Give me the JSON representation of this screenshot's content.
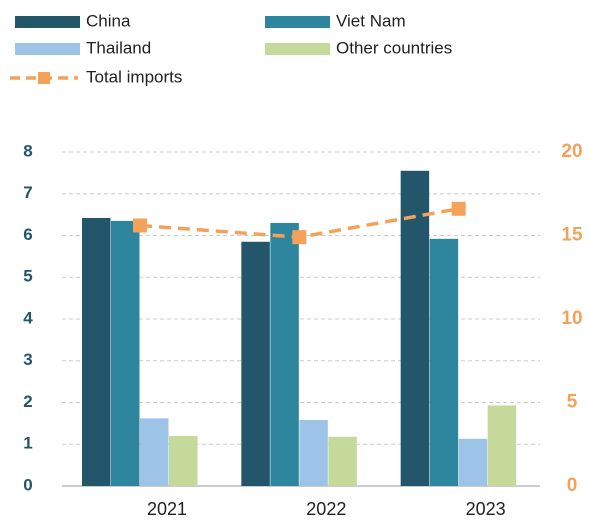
{
  "chart_data": {
    "type": "bar",
    "categories": [
      "2021",
      "2022",
      "2023"
    ],
    "series": [
      {
        "name": "China",
        "color": "#23566b",
        "values": [
          6.42,
          5.85,
          7.55
        ]
      },
      {
        "name": "Viet Nam",
        "color": "#2e869e",
        "values": [
          6.35,
          6.3,
          5.92
        ]
      },
      {
        "name": "Thailand",
        "color": "#9dc3e6",
        "values": [
          1.62,
          1.58,
          1.13
        ]
      },
      {
        "name": "Other countries",
        "color": "#c5da9a",
        "values": [
          1.2,
          1.18,
          1.93
        ]
      },
      {
        "name": "Total imports",
        "color": "#f4a259",
        "type": "line",
        "axis": "y2",
        "values": [
          15.6,
          14.9,
          16.6
        ]
      }
    ],
    "ylim": [
      0,
      8
    ],
    "yticks": [
      0,
      1,
      2,
      3,
      4,
      5,
      6,
      7,
      8
    ],
    "y2lim": [
      0,
      20
    ],
    "y2ticks": [
      0,
      5,
      10,
      15,
      20
    ],
    "grid": true,
    "legend": "top"
  }
}
